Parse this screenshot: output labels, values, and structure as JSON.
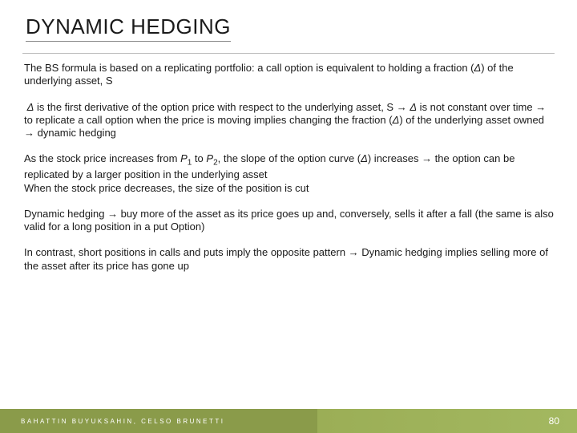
{
  "slide": {
    "title": "DYNAMIC HEDGING",
    "para1_a": "The BS formula is based on a replicating portfolio: a call option is equivalent to holding a fraction (",
    "para1_b": ") of the underlying asset, S",
    "para2_a": " is the first derivative of the option price with respect to the underlying asset, S ",
    "para2_b": " is not constant over time ",
    "para2_c": " to replicate a call option when the price is moving implies changing the fraction (",
    "para2_d": ") of the underlying asset owned ",
    "para2_e": " dynamic hedging",
    "para3_a": "As the stock price increases from ",
    "para3_b": " to ",
    "para3_c": ", the slope of the option curve (",
    "para3_d": ") increases ",
    "para3_e": " the option can be replicated by a larger position in the underlying asset",
    "para3_f": "When the stock price decreases, the size of the position is cut",
    "para4_a": "Dynamic hedging ",
    "para4_b": " buy more of the asset as its price goes up and, conversely, sells it after a fall (the same is also valid for a long position in a put Option)",
    "para5_a": "In contrast, short positions in calls and puts imply the opposite pattern ",
    "para5_b": " Dynamic hedging implies selling more of the asset after its price has gone up",
    "symbols": {
      "delta": "Δ",
      "delta_italic": "Δ",
      "arrow": "→",
      "P": "P",
      "one": "1",
      "two": "2"
    },
    "footer_author": "BAHATTIN BUYUKSAHIN, CELSO BRUNETTI",
    "footer_page": "80"
  },
  "style": {
    "title_fontsize": 26,
    "body_fontsize": 13,
    "footer_left_fontsize": 8,
    "footer_right_fontsize": 12,
    "text_color": "#1a1a1a",
    "footer_bg_left": "#8a9b4a",
    "footer_bg_right": "#a3b860",
    "footer_text": "#ffffff",
    "background": "#ffffff"
  }
}
